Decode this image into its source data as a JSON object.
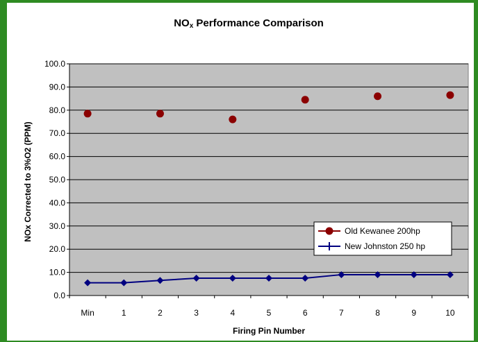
{
  "chart_data": {
    "type": "scatter",
    "title": "NOx Performance Comparison",
    "title_main": "NO",
    "title_sub": "x",
    "title_rest": " Performance Comparison",
    "xlabel": "Firing Pin Number",
    "ylabel": "NOx Corrected to 3%O2 (PPM)",
    "categories": [
      "Min",
      "1",
      "2",
      "3",
      "4",
      "5",
      "6",
      "7",
      "8",
      "9",
      "10"
    ],
    "ylim": [
      0,
      100
    ],
    "yticks": [
      "0.0",
      "10.0",
      "20.0",
      "30.0",
      "40.0",
      "50.0",
      "60.0",
      "70.0",
      "80.0",
      "90.0",
      "100.0"
    ],
    "grid": true,
    "legend_position": "lower-right",
    "series": [
      {
        "name": "Old Kewanee 200hp",
        "style": "markers",
        "color": "#8b0000",
        "x_index": [
          0,
          2,
          4,
          6,
          8,
          10
        ],
        "values": [
          78.5,
          78.5,
          76,
          84.5,
          86,
          86.5
        ]
      },
      {
        "name": "New Johnston 250 hp",
        "style": "line",
        "color": "#000080",
        "x_index": [
          0,
          1,
          2,
          3,
          4,
          5,
          6,
          7,
          8,
          9,
          10
        ],
        "values": [
          5.5,
          5.5,
          6.5,
          7.5,
          7.5,
          7.5,
          7.5,
          9,
          9,
          9,
          9
        ]
      }
    ]
  }
}
